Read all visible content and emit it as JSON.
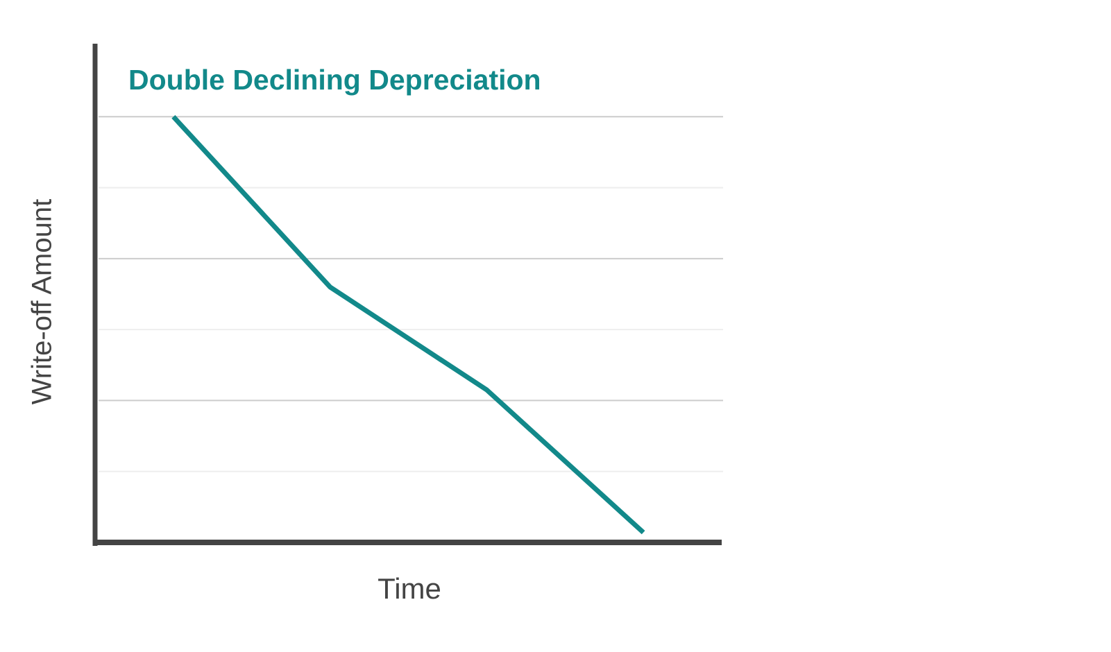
{
  "chart_data": {
    "type": "line",
    "title": "Double Declining Depreciation",
    "x_label": "Time",
    "y_label": "Write-off Amount",
    "categories": [
      null,
      null,
      null,
      null
    ],
    "values": [
      6.0,
      3.6,
      2.15,
      0.14
    ],
    "color": "#12898a",
    "ylim": [
      0,
      7
    ],
    "yticks": [
      1,
      2,
      3,
      4,
      5,
      6
    ],
    "grid": true
  }
}
